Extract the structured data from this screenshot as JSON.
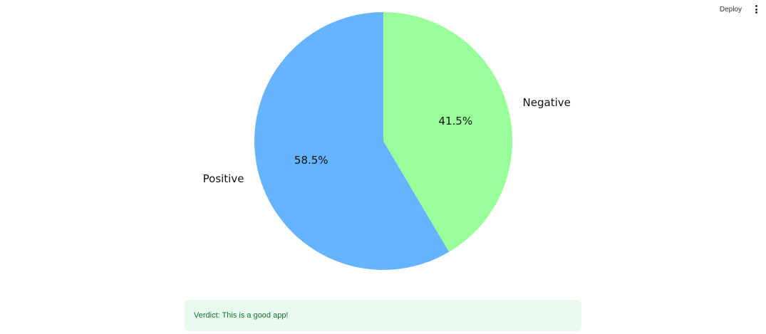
{
  "header": {
    "deploy_label": "Deploy",
    "menu_icon": "vertical-ellipsis-icon"
  },
  "chart_data": {
    "type": "pie",
    "slices": [
      {
        "label": "Negative",
        "value": 41.5,
        "pct_label": "41.5%",
        "color": "#99ff99"
      },
      {
        "label": "Positive",
        "value": 58.5,
        "pct_label": "58.5%",
        "color": "#66b3ff"
      }
    ],
    "start_angle": "top",
    "direction": "clockwise"
  },
  "verdict": {
    "text": "Verdict: This is a good app!",
    "background": "#e8f9ee",
    "text_color": "#177233"
  }
}
